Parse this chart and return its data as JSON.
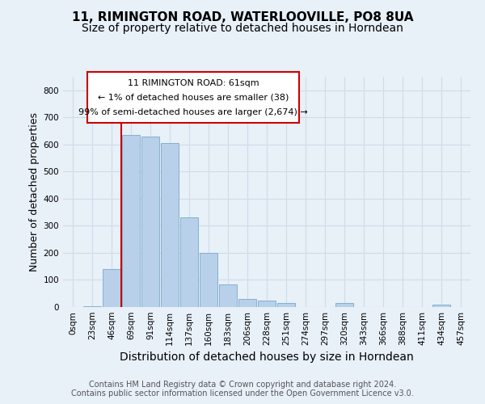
{
  "title": "11, RIMINGTON ROAD, WATERLOOVILLE, PO8 8UA",
  "subtitle": "Size of property relative to detached houses in Horndean",
  "xlabel": "Distribution of detached houses by size in Horndean",
  "ylabel": "Number of detached properties",
  "footer_line1": "Contains HM Land Registry data © Crown copyright and database right 2024.",
  "footer_line2": "Contains public sector information licensed under the Open Government Licence v3.0.",
  "annotation_line1": "11 RIMINGTON ROAD: 61sqm",
  "annotation_line2": "← 1% of detached houses are smaller (38)",
  "annotation_line3": "99% of semi-detached houses are larger (2,674) →",
  "bin_labels": [
    "0sqm",
    "23sqm",
    "46sqm",
    "69sqm",
    "91sqm",
    "114sqm",
    "137sqm",
    "160sqm",
    "183sqm",
    "206sqm",
    "228sqm",
    "251sqm",
    "274sqm",
    "297sqm",
    "320sqm",
    "343sqm",
    "366sqm",
    "388sqm",
    "411sqm",
    "434sqm",
    "457sqm"
  ],
  "bar_values": [
    0,
    2,
    140,
    635,
    630,
    605,
    330,
    200,
    85,
    30,
    25,
    15,
    0,
    0,
    15,
    0,
    0,
    0,
    0,
    8,
    0
  ],
  "bar_color": "#b8d0ea",
  "bar_edge_color": "#7aaac8",
  "vline_x_idx": 2.5,
  "vline_color": "#cc0000",
  "annotation_box_color": "#cc0000",
  "ylim": [
    0,
    850
  ],
  "yticks": [
    0,
    100,
    200,
    300,
    400,
    500,
    600,
    700,
    800
  ],
  "bg_color": "#e8f0f8",
  "plot_bg_color": "#e8f0f8",
  "grid_color": "#d0dcea",
  "title_fontsize": 11,
  "subtitle_fontsize": 10,
  "axis_label_fontsize": 9,
  "tick_fontsize": 7.5,
  "footer_fontsize": 7
}
